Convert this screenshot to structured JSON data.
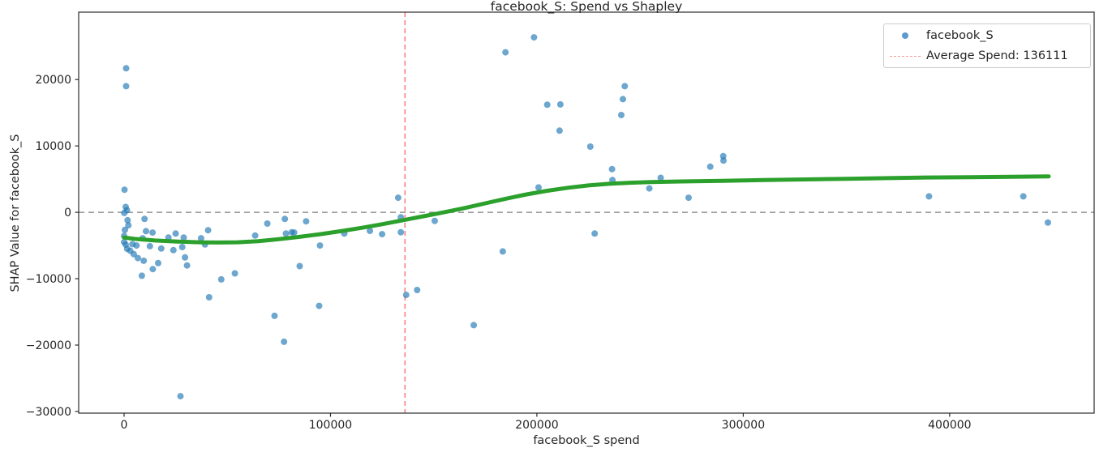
{
  "chart_data": {
    "type": "scatter",
    "title": "facebook_S: Spend vs Shapley",
    "xlabel": "facebook_S spend",
    "ylabel": "SHAP Value for facebook_S",
    "xlim": [
      -22000,
      470000
    ],
    "ylim": [
      -30250,
      30150
    ],
    "grid": false,
    "x_ticks": [
      0,
      100000,
      200000,
      300000,
      400000
    ],
    "x_tick_labels": [
      "0",
      "100000",
      "200000",
      "300000",
      "400000"
    ],
    "y_ticks": [
      20000,
      10000,
      0,
      -10000,
      -20000,
      -30000
    ],
    "y_tick_labels": [
      "20000",
      "10000",
      "0",
      "−10000",
      "−20000",
      "−30000"
    ],
    "colors": {
      "scatter": "#1f77b4",
      "trend": "#2ca02c",
      "average_line": "#f57f7f",
      "zero_line": "#7f7f7f",
      "spine": "#2b2b2b",
      "text": "#262626"
    },
    "series": [
      {
        "name": "facebook_S",
        "type": "scatter",
        "color": "#1f77b4",
        "opacity": 0.65,
        "marker_radius": 4,
        "points": [
          [
            1000,
            21700
          ],
          [
            1000,
            19000
          ],
          [
            200,
            3400
          ],
          [
            800,
            800
          ],
          [
            1400,
            300
          ],
          [
            100,
            -100
          ],
          [
            1700,
            -1200
          ],
          [
            2100,
            -1950
          ],
          [
            400,
            -2650
          ],
          [
            0,
            -3550
          ],
          [
            0,
            -4480
          ],
          [
            800,
            -4880
          ],
          [
            1500,
            -5500
          ],
          [
            3000,
            -5800
          ],
          [
            4000,
            -4800
          ],
          [
            4700,
            -6300
          ],
          [
            6000,
            -5000
          ],
          [
            6700,
            -6900
          ],
          [
            8600,
            -9550
          ],
          [
            9000,
            -3900
          ],
          [
            9500,
            -7300
          ],
          [
            9900,
            -1000
          ],
          [
            10600,
            -2850
          ],
          [
            12500,
            -5100
          ],
          [
            13800,
            -3050
          ],
          [
            13900,
            -8550
          ],
          [
            16500,
            -7650
          ],
          [
            18000,
            -5450
          ],
          [
            21500,
            -3800
          ],
          [
            23900,
            -5700
          ],
          [
            25000,
            -3200
          ],
          [
            27300,
            -27700
          ],
          [
            28900,
            -3800
          ],
          [
            28200,
            -5240
          ],
          [
            29500,
            -6800
          ],
          [
            30500,
            -8000
          ],
          [
            37300,
            -3900
          ],
          [
            39200,
            -4840
          ],
          [
            40700,
            -2700
          ],
          [
            41200,
            -12800
          ],
          [
            47100,
            -10100
          ],
          [
            53700,
            -9200
          ],
          [
            63500,
            -3500
          ],
          [
            69400,
            -1700
          ],
          [
            72900,
            -15600
          ],
          [
            77500,
            -19500
          ],
          [
            77900,
            -1000
          ],
          [
            78400,
            -3200
          ],
          [
            81200,
            -3000
          ],
          [
            82400,
            -3050
          ],
          [
            85100,
            -8100
          ],
          [
            88200,
            -1350
          ],
          [
            94500,
            -14100
          ],
          [
            94900,
            -5000
          ],
          [
            106700,
            -3200
          ],
          [
            119100,
            -2800
          ],
          [
            125000,
            -3300
          ],
          [
            132800,
            2200
          ],
          [
            134100,
            -750
          ],
          [
            134100,
            -3000
          ],
          [
            136700,
            -12450
          ],
          [
            142000,
            -11700
          ],
          [
            150500,
            -1300
          ],
          [
            169400,
            -17000
          ],
          [
            183500,
            -5900
          ],
          [
            184800,
            24100
          ],
          [
            198600,
            26350
          ],
          [
            200800,
            3750
          ],
          [
            205000,
            16200
          ],
          [
            211000,
            12300
          ],
          [
            211400,
            16250
          ],
          [
            225900,
            9900
          ],
          [
            228000,
            -3200
          ],
          [
            236400,
            6500
          ],
          [
            236600,
            4850
          ],
          [
            240900,
            14650
          ],
          [
            241700,
            17050
          ],
          [
            242600,
            19000
          ],
          [
            254500,
            3600
          ],
          [
            260000,
            5200
          ],
          [
            273500,
            2200
          ],
          [
            284000,
            6870
          ],
          [
            290300,
            8450
          ],
          [
            290400,
            7800
          ],
          [
            390000,
            2400
          ],
          [
            435700,
            2400
          ],
          [
            447600,
            -1550
          ]
        ]
      },
      {
        "name": "trend",
        "type": "line",
        "color": "#2ca02c",
        "width": 5,
        "points": [
          [
            0,
            -3800
          ],
          [
            5000,
            -4000
          ],
          [
            15000,
            -4250
          ],
          [
            25000,
            -4400
          ],
          [
            35000,
            -4500
          ],
          [
            45000,
            -4550
          ],
          [
            55000,
            -4520
          ],
          [
            65000,
            -4350
          ],
          [
            75000,
            -4050
          ],
          [
            85000,
            -3700
          ],
          [
            95000,
            -3300
          ],
          [
            105000,
            -2850
          ],
          [
            115000,
            -2350
          ],
          [
            125000,
            -1800
          ],
          [
            135000,
            -1200
          ],
          [
            145000,
            -600
          ],
          [
            155000,
            0
          ],
          [
            165000,
            650
          ],
          [
            175000,
            1350
          ],
          [
            185000,
            2050
          ],
          [
            195000,
            2700
          ],
          [
            205000,
            3250
          ],
          [
            215000,
            3700
          ],
          [
            225000,
            4050
          ],
          [
            235000,
            4300
          ],
          [
            245000,
            4450
          ],
          [
            255000,
            4550
          ],
          [
            270000,
            4650
          ],
          [
            290000,
            4750
          ],
          [
            310000,
            4850
          ],
          [
            330000,
            4950
          ],
          [
            350000,
            5050
          ],
          [
            370000,
            5150
          ],
          [
            390000,
            5250
          ],
          [
            410000,
            5300
          ],
          [
            430000,
            5350
          ],
          [
            448000,
            5400
          ]
        ]
      }
    ],
    "reference_lines": {
      "zero": {
        "y": 0,
        "color": "#7f7f7f",
        "style": "dashed"
      },
      "average_spend": {
        "x": 136111,
        "color": "#f57f7f",
        "style": "dashed"
      }
    },
    "legend": {
      "position": "upper right",
      "items": [
        {
          "label": "facebook_S",
          "marker": "dot",
          "color": "#5b9bd0"
        },
        {
          "label": "Average Spend: 136111",
          "marker": "dashed-line",
          "color": "#f59a9a"
        }
      ]
    }
  }
}
